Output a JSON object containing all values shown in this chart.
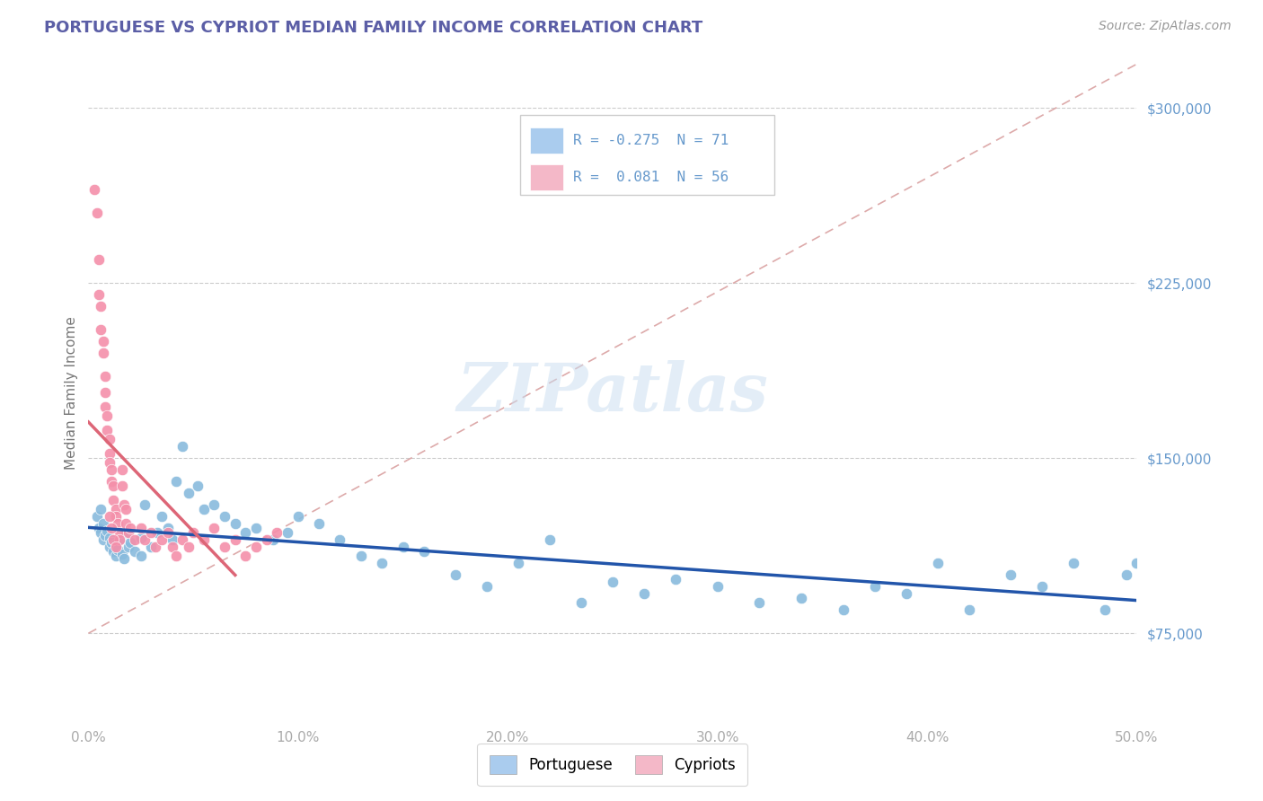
{
  "title": "PORTUGUESE VS CYPRIOT MEDIAN FAMILY INCOME CORRELATION CHART",
  "source_text": "Source: ZipAtlas.com",
  "ylabel": "Median Family Income",
  "watermark": "ZIPatlas",
  "xlim": [
    0.0,
    0.5
  ],
  "ylim": [
    37500,
    318750
  ],
  "yticks": [
    75000,
    150000,
    225000,
    300000
  ],
  "ytick_labels": [
    "$75,000",
    "$150,000",
    "$225,000",
    "$300,000"
  ],
  "xticks": [
    0.0,
    0.1,
    0.2,
    0.3,
    0.4,
    0.5
  ],
  "xtick_labels": [
    "0.0%",
    "10.0%",
    "20.0%",
    "30.0%",
    "40.0%",
    "50.0%"
  ],
  "title_color": "#5b5ea6",
  "axis_label_color": "#6699cc",
  "ylabel_color": "#777777",
  "tick_color": "#aaaaaa",
  "grid_color": "#cccccc",
  "background_color": "#ffffff",
  "legend_R1": "-0.275",
  "legend_N1": "71",
  "legend_R2": "0.081",
  "legend_N2": "56",
  "blue_patch_color": "#aaccee",
  "pink_patch_color": "#f4b8c8",
  "blue_scatter_color": "#88bbdd",
  "pink_scatter_color": "#f48faa",
  "blue_line_color": "#2255aa",
  "pink_line_color": "#dd6677",
  "diag_line_color": "#ddaaaa",
  "portuguese_x": [
    0.004,
    0.005,
    0.006,
    0.006,
    0.007,
    0.007,
    0.008,
    0.009,
    0.01,
    0.01,
    0.011,
    0.012,
    0.013,
    0.013,
    0.014,
    0.015,
    0.016,
    0.017,
    0.018,
    0.019,
    0.02,
    0.022,
    0.025,
    0.025,
    0.027,
    0.03,
    0.033,
    0.035,
    0.038,
    0.04,
    0.042,
    0.045,
    0.048,
    0.052,
    0.055,
    0.06,
    0.065,
    0.07,
    0.075,
    0.08,
    0.088,
    0.095,
    0.1,
    0.11,
    0.12,
    0.13,
    0.14,
    0.15,
    0.16,
    0.175,
    0.19,
    0.205,
    0.22,
    0.235,
    0.25,
    0.265,
    0.28,
    0.3,
    0.32,
    0.34,
    0.36,
    0.375,
    0.39,
    0.405,
    0.42,
    0.44,
    0.455,
    0.47,
    0.485,
    0.495,
    0.5
  ],
  "portuguese_y": [
    125000,
    120000,
    128000,
    118000,
    122000,
    115000,
    117000,
    119000,
    112000,
    116000,
    114000,
    110000,
    113000,
    108000,
    111000,
    115000,
    109000,
    107000,
    118000,
    112000,
    114000,
    110000,
    116000,
    108000,
    130000,
    112000,
    118000,
    125000,
    120000,
    115000,
    140000,
    155000,
    135000,
    138000,
    128000,
    130000,
    125000,
    122000,
    118000,
    120000,
    115000,
    118000,
    125000,
    122000,
    115000,
    108000,
    105000,
    112000,
    110000,
    100000,
    95000,
    105000,
    115000,
    88000,
    97000,
    92000,
    98000,
    95000,
    88000,
    90000,
    85000,
    95000,
    92000,
    105000,
    85000,
    100000,
    95000,
    105000,
    85000,
    100000,
    105000
  ],
  "cypriot_x": [
    0.003,
    0.004,
    0.005,
    0.005,
    0.006,
    0.006,
    0.007,
    0.007,
    0.008,
    0.008,
    0.008,
    0.009,
    0.009,
    0.01,
    0.01,
    0.01,
    0.011,
    0.011,
    0.012,
    0.012,
    0.013,
    0.013,
    0.014,
    0.015,
    0.015,
    0.016,
    0.016,
    0.017,
    0.018,
    0.018,
    0.019,
    0.02,
    0.022,
    0.025,
    0.027,
    0.03,
    0.032,
    0.035,
    0.038,
    0.04,
    0.042,
    0.045,
    0.048,
    0.05,
    0.055,
    0.06,
    0.065,
    0.07,
    0.075,
    0.08,
    0.085,
    0.09,
    0.01,
    0.011,
    0.012,
    0.013
  ],
  "cypriot_y": [
    265000,
    255000,
    235000,
    220000,
    215000,
    205000,
    200000,
    195000,
    185000,
    178000,
    172000,
    168000,
    162000,
    158000,
    152000,
    148000,
    145000,
    140000,
    138000,
    132000,
    128000,
    125000,
    122000,
    118000,
    115000,
    145000,
    138000,
    130000,
    128000,
    122000,
    118000,
    120000,
    115000,
    120000,
    115000,
    118000,
    112000,
    115000,
    118000,
    112000,
    108000,
    115000,
    112000,
    118000,
    115000,
    120000,
    112000,
    115000,
    108000,
    112000,
    115000,
    118000,
    125000,
    120000,
    115000,
    112000
  ]
}
